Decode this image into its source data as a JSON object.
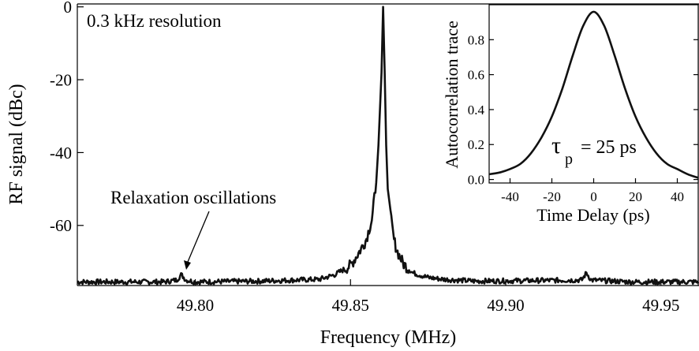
{
  "chart_data": [
    {
      "type": "line",
      "xlabel": "Frequency (MHz)",
      "ylabel": "RF signal (dBc)",
      "xlim": [
        49.762,
        49.962
      ],
      "ylim": [
        -76.5,
        0.8
      ],
      "xticks": [
        49.8,
        49.85,
        49.9,
        49.95
      ],
      "xtick_labels": [
        "49.80",
        "49.85",
        "49.90",
        "49.95"
      ],
      "yticks": [
        0,
        -20,
        -40,
        -60
      ],
      "ytick_labels": [
        "0",
        "-20",
        "-40",
        "-60"
      ],
      "grid": false,
      "annotations": [
        {
          "text": "0.3 kHz resolution"
        },
        {
          "text": "Relaxation oscillations",
          "points_to": [
            49.7955,
            -73.5
          ]
        }
      ],
      "series": [
        {
          "noise_floor": -75.5,
          "x": [
            49.762,
            49.79,
            49.794,
            49.7955,
            49.797,
            49.8,
            49.82,
            49.84,
            49.845,
            49.85,
            49.853,
            49.855,
            49.857,
            49.858,
            49.859,
            49.86,
            49.8605,
            49.861,
            49.8615,
            49.862,
            49.863,
            49.864,
            49.865,
            49.867,
            49.87,
            49.875,
            49.88,
            49.89,
            49.9245,
            49.926,
            49.9275,
            49.94,
            49.962
          ],
          "y": [
            -75.5,
            -75.5,
            -75.0,
            -73.5,
            -75.0,
            -75.5,
            -75.3,
            -74.8,
            -73.5,
            -71.0,
            -67.0,
            -64.0,
            -58.0,
            -50.0,
            -38.0,
            -18.0,
            0.0,
            -18.0,
            -38.0,
            -50.0,
            -58.0,
            -64.0,
            -67.0,
            -70.5,
            -73.0,
            -74.3,
            -74.8,
            -75.3,
            -75.0,
            -73.0,
            -75.0,
            -75.5,
            -75.5
          ]
        }
      ]
    },
    {
      "type": "line",
      "xlabel": "Time Delay (ps)",
      "ylabel": "Autocorrelation trace",
      "xlim": [
        -50,
        50
      ],
      "ylim": [
        -0.02,
        1.0
      ],
      "xticks": [
        -40,
        -20,
        0,
        20,
        40
      ],
      "xtick_labels": [
        "-40",
        "-20",
        "0",
        "20",
        "40"
      ],
      "yticks": [
        0.0,
        0.2,
        0.4,
        0.6,
        0.8
      ],
      "ytick_labels": [
        "0.0",
        "0.2",
        "0.4",
        "0.6",
        "0.8"
      ],
      "grid": false,
      "annotations": [
        {
          "tau": "τ",
          "sub": "p",
          "text": "= 25 ps"
        }
      ],
      "series": [
        {
          "x": [
            -50,
            -45,
            -40,
            -35,
            -30,
            -25,
            -20,
            -15,
            -10,
            -5,
            0,
            5,
            10,
            15,
            20,
            25,
            30,
            35,
            40,
            45,
            50
          ],
          "y": [
            0.03,
            0.04,
            0.06,
            0.09,
            0.15,
            0.24,
            0.36,
            0.52,
            0.71,
            0.88,
            0.96,
            0.88,
            0.71,
            0.52,
            0.36,
            0.24,
            0.15,
            0.09,
            0.06,
            0.03,
            0.01
          ]
        }
      ]
    }
  ]
}
